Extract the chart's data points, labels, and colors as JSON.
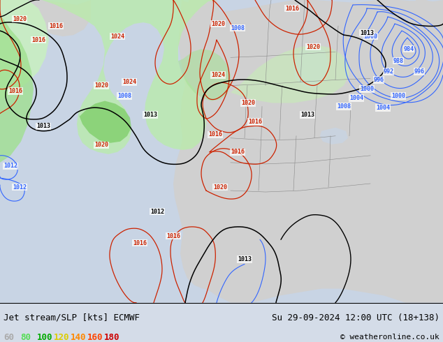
{
  "title_left": "Jet stream/SLP [kts] ECMWF",
  "title_right": "Su 29-09-2024 12:00 UTC (18+138)",
  "copyright": "© weatheronline.co.uk",
  "legend_values": [
    "60",
    "80",
    "100",
    "120",
    "140",
    "160",
    "180"
  ],
  "legend_colors": [
    "#aaaaaa",
    "#55dd55",
    "#00aa00",
    "#ddcc00",
    "#ff8800",
    "#ff4400",
    "#cc0000"
  ],
  "bg_color": "#d4dce8",
  "ocean_color": "#c8d4e4",
  "land_color": "#d8d8d8",
  "land_green_color": "#c8e8c0",
  "jet_green_light": "#c0e8b0",
  "jet_green_mid": "#90d880",
  "jet_green_dark": "#60c040",
  "title_fontsize": 9,
  "legend_fontsize": 9,
  "copyright_fontsize": 8,
  "slp_blue": "#3366ff",
  "slp_red": "#cc2200",
  "slp_black": "#000000"
}
